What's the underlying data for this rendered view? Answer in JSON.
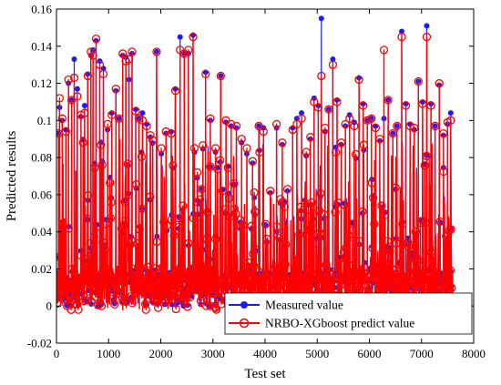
{
  "chart_data": {
    "type": "line",
    "title": "",
    "xlabel": "Test set",
    "ylabel": "Predicted results",
    "xlim": [
      0,
      8000
    ],
    "ylim": [
      -0.02,
      0.16
    ],
    "xticks": [
      0,
      1000,
      2000,
      3000,
      4000,
      5000,
      6000,
      7000,
      8000
    ],
    "yticks": [
      -0.02,
      0,
      0.02,
      0.04,
      0.06,
      0.08,
      0.1,
      0.12,
      0.14,
      0.16
    ],
    "xtick_labels": [
      "0",
      "1000",
      "2000",
      "3000",
      "4000",
      "5000",
      "6000",
      "7000",
      "8000"
    ],
    "ytick_labels": [
      "-0.02",
      "0",
      "0.02",
      "0.04",
      "0.06",
      "0.08",
      "0.1",
      "0.12",
      "0.14",
      "0.16"
    ],
    "grid": false,
    "legend_position": "bottom-right",
    "n_points": 7600,
    "baseline_band": [
      0.0,
      0.02
    ],
    "series": [
      {
        "name": "Measured value",
        "color": "#1a1aff",
        "marker": "filled-circle",
        "peaks": [
          [
            40,
            0.093
          ],
          [
            60,
            0.107
          ],
          [
            110,
            0.1
          ],
          [
            180,
            0.095
          ],
          [
            230,
            0.12
          ],
          [
            290,
            0.111
          ],
          [
            340,
            0.133
          ],
          [
            400,
            0.117
          ],
          [
            470,
            0.102
          ],
          [
            540,
            0.108
          ],
          [
            600,
            0.125
          ],
          [
            660,
            0.135
          ],
          [
            700,
            0.138
          ],
          [
            760,
            0.143
          ],
          [
            830,
            0.132
          ],
          [
            900,
            0.128
          ],
          [
            980,
            0.095
          ],
          [
            1060,
            0.104
          ],
          [
            1140,
            0.116
          ],
          [
            1200,
            0.101
          ],
          [
            1270,
            0.135
          ],
          [
            1330,
            0.134
          ],
          [
            1390,
            0.122
          ],
          [
            1450,
            0.136
          ],
          [
            1520,
            0.106
          ],
          [
            1580,
            0.101
          ],
          [
            1650,
            0.104
          ],
          [
            1730,
            0.098
          ],
          [
            1800,
            0.091
          ],
          [
            1920,
            0.137
          ],
          [
            2010,
            0.082
          ],
          [
            2100,
            0.093
          ],
          [
            2200,
            0.094
          ],
          [
            2280,
            0.117
          ],
          [
            2370,
            0.145
          ],
          [
            2450,
            0.136
          ],
          [
            2530,
            0.136
          ],
          [
            2620,
            0.146
          ],
          [
            2700,
            0.069
          ],
          [
            2780,
            0.063
          ],
          [
            2860,
            0.126
          ],
          [
            2950,
            0.1
          ],
          [
            3050,
            0.083
          ],
          [
            3150,
            0.124
          ],
          [
            3250,
            0.099
          ],
          [
            3350,
            0.097
          ],
          [
            3450,
            0.096
          ],
          [
            3550,
            0.088
          ],
          [
            3650,
            0.082
          ],
          [
            3760,
            0.077
          ],
          [
            3880,
            0.097
          ],
          [
            3970,
            0.096
          ],
          [
            4100,
            0.061
          ],
          [
            4220,
            0.096
          ],
          [
            4330,
            0.087
          ],
          [
            4430,
            0.062
          ],
          [
            4530,
            0.096
          ],
          [
            4610,
            0.101
          ],
          [
            4700,
            0.104
          ],
          [
            4790,
            0.081
          ],
          [
            4870,
            0.09
          ],
          [
            4940,
            0.112
          ],
          [
            5020,
            0.108
          ],
          [
            5080,
            0.155
          ],
          [
            5150,
            0.094
          ],
          [
            5220,
            0.106
          ],
          [
            5300,
            0.133
          ],
          [
            5380,
            0.111
          ],
          [
            5460,
            0.087
          ],
          [
            5540,
            0.097
          ],
          [
            5620,
            0.103
          ],
          [
            5710,
            0.099
          ],
          [
            5800,
            0.123
          ],
          [
            5880,
            0.109
          ],
          [
            5960,
            0.1
          ],
          [
            6040,
            0.101
          ],
          [
            6120,
            0.097
          ],
          [
            6200,
            0.089
          ],
          [
            6280,
            0.101
          ],
          [
            6360,
            0.111
          ],
          [
            6450,
            0.093
          ],
          [
            6530,
            0.097
          ],
          [
            6620,
            0.148
          ],
          [
            6700,
            0.109
          ],
          [
            6780,
            0.098
          ],
          [
            6860,
            0.095
          ],
          [
            6940,
            0.121
          ],
          [
            7020,
            0.11
          ],
          [
            7100,
            0.151
          ],
          [
            7180,
            0.109
          ],
          [
            7260,
            0.097
          ],
          [
            7340,
            0.119
          ],
          [
            7420,
            0.092
          ],
          [
            7500,
            0.098
          ],
          [
            7560,
            0.104
          ]
        ]
      },
      {
        "name": "NRBO-XGboost predict value",
        "color": "#ff0000",
        "marker": "open-circle",
        "peaks": [
          [
            40,
            0.093
          ],
          [
            60,
            0.112
          ],
          [
            110,
            0.101
          ],
          [
            180,
            0.094
          ],
          [
            230,
            0.122
          ],
          [
            290,
            0.111
          ],
          [
            340,
            0.123
          ],
          [
            400,
            0.113
          ],
          [
            470,
            0.103
          ],
          [
            540,
            0.104
          ],
          [
            600,
            0.124
          ],
          [
            660,
            0.137
          ],
          [
            700,
            0.135
          ],
          [
            760,
            0.144
          ],
          [
            830,
            0.13
          ],
          [
            900,
            0.125
          ],
          [
            980,
            0.098
          ],
          [
            1060,
            0.103
          ],
          [
            1140,
            0.117
          ],
          [
            1200,
            0.101
          ],
          [
            1270,
            0.136
          ],
          [
            1330,
            0.132
          ],
          [
            1390,
            0.133
          ],
          [
            1450,
            0.137
          ],
          [
            1520,
            0.105
          ],
          [
            1580,
            0.101
          ],
          [
            1650,
            0.1
          ],
          [
            1730,
            0.097
          ],
          [
            1800,
            0.092
          ],
          [
            1920,
            0.137
          ],
          [
            2010,
            0.085
          ],
          [
            2100,
            0.094
          ],
          [
            2200,
            0.093
          ],
          [
            2280,
            0.116
          ],
          [
            2370,
            0.138
          ],
          [
            2450,
            0.136
          ],
          [
            2530,
            0.138
          ],
          [
            2620,
            0.145
          ],
          [
            2700,
            0.072
          ],
          [
            2780,
            0.063
          ],
          [
            2860,
            0.125
          ],
          [
            2950,
            0.101
          ],
          [
            3050,
            0.085
          ],
          [
            3150,
            0.124
          ],
          [
            3250,
            0.1
          ],
          [
            3350,
            0.098
          ],
          [
            3450,
            0.097
          ],
          [
            3550,
            0.09
          ],
          [
            3650,
            0.085
          ],
          [
            3760,
            0.078
          ],
          [
            3880,
            0.097
          ],
          [
            3970,
            0.094
          ],
          [
            4100,
            0.062
          ],
          [
            4220,
            0.098
          ],
          [
            4330,
            0.088
          ],
          [
            4430,
            0.063
          ],
          [
            4530,
            0.095
          ],
          [
            4610,
            0.098
          ],
          [
            4700,
            0.101
          ],
          [
            4790,
            0.083
          ],
          [
            4870,
            0.091
          ],
          [
            4940,
            0.11
          ],
          [
            5020,
            0.107
          ],
          [
            5080,
            0.124
          ],
          [
            5150,
            0.096
          ],
          [
            5220,
            0.106
          ],
          [
            5300,
            0.13
          ],
          [
            5380,
            0.11
          ],
          [
            5460,
            0.088
          ],
          [
            5540,
            0.098
          ],
          [
            5620,
            0.101
          ],
          [
            5710,
            0.097
          ],
          [
            5800,
            0.122
          ],
          [
            5880,
            0.108
          ],
          [
            5960,
            0.1
          ],
          [
            6040,
            0.101
          ],
          [
            6120,
            0.096
          ],
          [
            6200,
            0.09
          ],
          [
            6280,
            0.138
          ],
          [
            6360,
            0.111
          ],
          [
            6450,
            0.093
          ],
          [
            6530,
            0.097
          ],
          [
            6620,
            0.145
          ],
          [
            6700,
            0.108
          ],
          [
            6780,
            0.097
          ],
          [
            6860,
            0.096
          ],
          [
            6940,
            0.121
          ],
          [
            7020,
            0.109
          ],
          [
            7100,
            0.145
          ],
          [
            7180,
            0.108
          ],
          [
            7260,
            0.097
          ],
          [
            7340,
            0.12
          ],
          [
            7420,
            0.093
          ],
          [
            7500,
            0.099
          ],
          [
            7560,
            0.1
          ]
        ]
      }
    ]
  }
}
